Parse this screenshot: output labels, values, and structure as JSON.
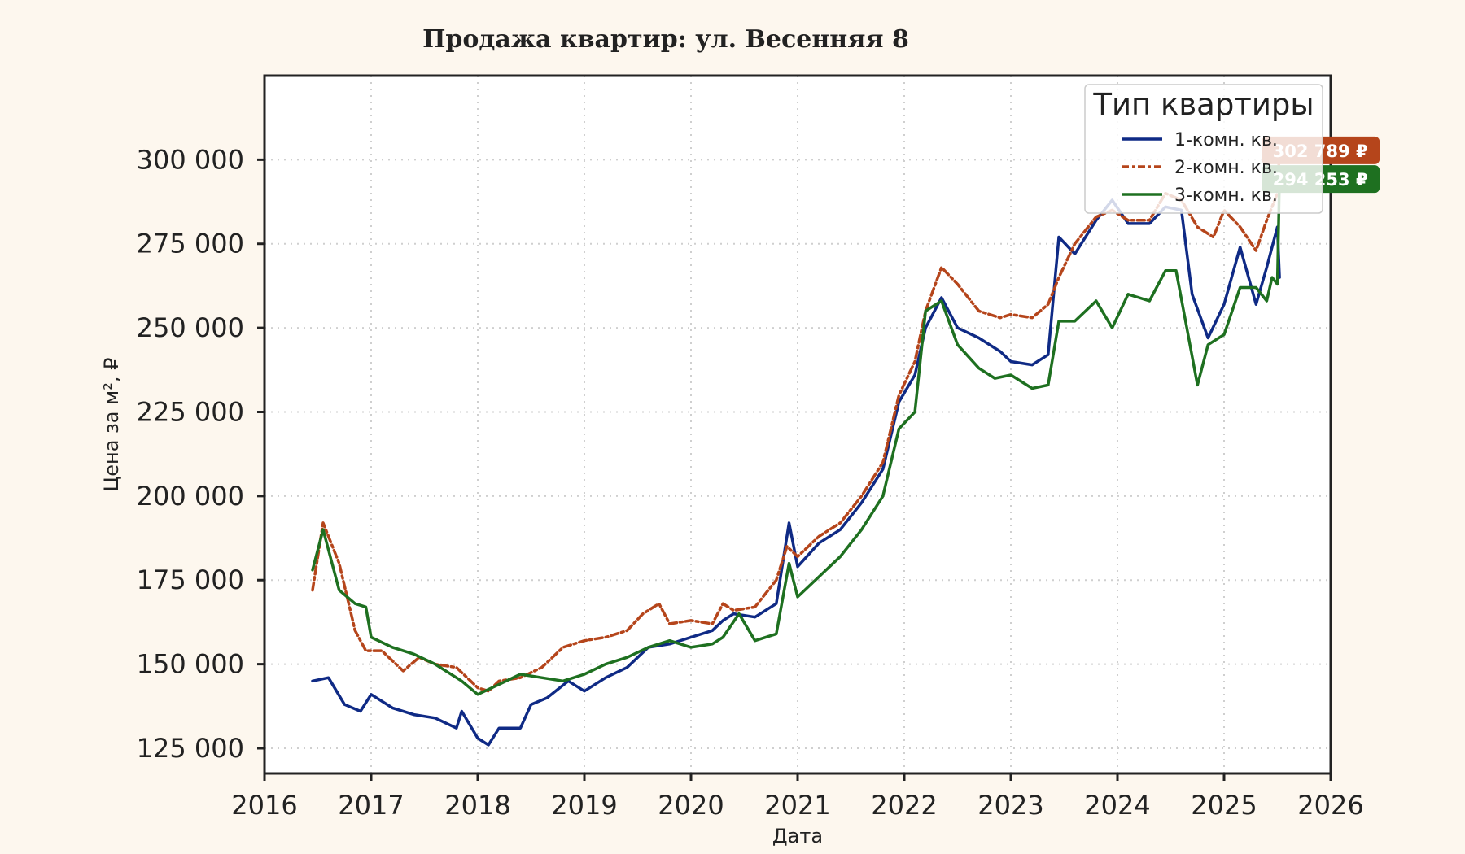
{
  "chart_data": {
    "type": "line",
    "title": "Продажа квартир: ул. Весенняя 8",
    "xlabel": "Дата",
    "ylabel": "Цена за м², ₽",
    "xlim": [
      2016.0,
      2026.0
    ],
    "ylim": [
      117500,
      325000
    ],
    "x_ticks": [
      2016,
      2017,
      2018,
      2019,
      2020,
      2021,
      2022,
      2023,
      2024,
      2025,
      2026
    ],
    "x_tick_labels": [
      "2016",
      "2017",
      "2018",
      "2019",
      "2020",
      "2021",
      "2022",
      "2023",
      "2024",
      "2025",
      "2026"
    ],
    "y_ticks": [
      125000,
      150000,
      175000,
      200000,
      225000,
      250000,
      275000,
      300000
    ],
    "y_tick_labels": [
      "125 000",
      "150 000",
      "175 000",
      "200 000",
      "225 000",
      "250 000",
      "275 000",
      "300 000"
    ],
    "grid": true,
    "legend": {
      "title": "Тип квартиры",
      "position": "top-right"
    },
    "series": [
      {
        "name": "1-комн. кв.",
        "color": "#0f2a85",
        "dash": "solid",
        "x": [
          2016.45,
          2016.6,
          2016.75,
          2016.9,
          2017.0,
          2017.2,
          2017.4,
          2017.6,
          2017.8,
          2017.85,
          2018.0,
          2018.1,
          2018.2,
          2018.4,
          2018.5,
          2018.65,
          2018.85,
          2019.0,
          2019.2,
          2019.4,
          2019.6,
          2019.8,
          2020.0,
          2020.2,
          2020.3,
          2020.4,
          2020.6,
          2020.8,
          2020.92,
          2021.0,
          2021.2,
          2021.4,
          2021.6,
          2021.8,
          2021.95,
          2022.1,
          2022.2,
          2022.35,
          2022.5,
          2022.7,
          2022.9,
          2023.0,
          2023.2,
          2023.35,
          2023.45,
          2023.6,
          2023.8,
          2023.95,
          2024.1,
          2024.3,
          2024.45,
          2024.6,
          2024.7,
          2024.85,
          2025.0,
          2025.15,
          2025.3,
          2025.4,
          2025.5,
          2025.52
        ],
        "y": [
          145000,
          146000,
          138000,
          136000,
          141000,
          137000,
          135000,
          134000,
          131000,
          136000,
          128000,
          126000,
          131000,
          131000,
          138000,
          140000,
          145000,
          142000,
          146000,
          149000,
          155000,
          156000,
          158000,
          160000,
          163000,
          165000,
          164000,
          168000,
          192000,
          179000,
          186000,
          190000,
          198000,
          208000,
          228000,
          236000,
          250000,
          259000,
          250000,
          247000,
          243000,
          240000,
          239000,
          242000,
          277000,
          272000,
          282000,
          288000,
          281000,
          281000,
          286000,
          285000,
          260000,
          247000,
          257000,
          274000,
          257000,
          268000,
          280000,
          265000
        ]
      },
      {
        "name": "2-комн. кв.",
        "color": "#b5451b",
        "dash": "dashdot",
        "x": [
          2016.45,
          2016.55,
          2016.7,
          2016.85,
          2016.95,
          2017.1,
          2017.3,
          2017.45,
          2017.6,
          2017.8,
          2018.0,
          2018.1,
          2018.2,
          2018.4,
          2018.6,
          2018.8,
          2019.0,
          2019.2,
          2019.4,
          2019.55,
          2019.7,
          2019.8,
          2020.0,
          2020.2,
          2020.3,
          2020.4,
          2020.6,
          2020.8,
          2020.9,
          2021.0,
          2021.2,
          2021.4,
          2021.6,
          2021.8,
          2021.95,
          2022.1,
          2022.2,
          2022.35,
          2022.5,
          2022.7,
          2022.9,
          2023.0,
          2023.2,
          2023.35,
          2023.45,
          2023.6,
          2023.8,
          2023.95,
          2024.1,
          2024.3,
          2024.45,
          2024.6,
          2024.75,
          2024.9,
          2025.0,
          2025.15,
          2025.3,
          2025.4,
          2025.5,
          2025.52
        ],
        "y": [
          172000,
          192000,
          180000,
          160000,
          154000,
          154000,
          148000,
          152000,
          150000,
          149000,
          143000,
          142000,
          145000,
          146000,
          149000,
          155000,
          157000,
          158000,
          160000,
          165000,
          168000,
          162000,
          163000,
          162000,
          168000,
          166000,
          167000,
          175000,
          185000,
          182000,
          188000,
          192000,
          200000,
          210000,
          230000,
          240000,
          255000,
          268000,
          263000,
          255000,
          253000,
          254000,
          253000,
          257000,
          265000,
          275000,
          283000,
          285000,
          282000,
          282000,
          290000,
          288000,
          280000,
          277000,
          285000,
          280000,
          273000,
          282000,
          290000,
          302789
        ]
      },
      {
        "name": "3-комн. кв.",
        "color": "#1e7020",
        "dash": "solid",
        "x": [
          2016.45,
          2016.55,
          2016.7,
          2016.85,
          2016.95,
          2017.0,
          2017.2,
          2017.4,
          2017.6,
          2017.85,
          2018.0,
          2018.2,
          2018.4,
          2018.6,
          2018.8,
          2019.0,
          2019.2,
          2019.4,
          2019.6,
          2019.8,
          2020.0,
          2020.2,
          2020.3,
          2020.45,
          2020.6,
          2020.8,
          2020.92,
          2021.0,
          2021.2,
          2021.4,
          2021.6,
          2021.8,
          2021.95,
          2022.1,
          2022.2,
          2022.35,
          2022.5,
          2022.7,
          2022.85,
          2023.0,
          2023.2,
          2023.35,
          2023.45,
          2023.6,
          2023.8,
          2023.95,
          2024.1,
          2024.3,
          2024.45,
          2024.55,
          2024.65,
          2024.75,
          2024.85,
          2025.0,
          2025.15,
          2025.3,
          2025.4,
          2025.45,
          2025.5,
          2025.52
        ],
        "y": [
          178000,
          190000,
          172000,
          168000,
          167000,
          158000,
          155000,
          153000,
          150000,
          145000,
          141000,
          144000,
          147000,
          146000,
          145000,
          147000,
          150000,
          152000,
          155000,
          157000,
          155000,
          156000,
          158000,
          165000,
          157000,
          159000,
          180000,
          170000,
          176000,
          182000,
          190000,
          200000,
          220000,
          225000,
          255000,
          258000,
          245000,
          238000,
          235000,
          236000,
          232000,
          233000,
          252000,
          252000,
          258000,
          250000,
          260000,
          258000,
          267000,
          267000,
          250000,
          233000,
          245000,
          248000,
          262000,
          262000,
          258000,
          265000,
          263000,
          294253
        ]
      }
    ],
    "end_labels": [
      {
        "series": "2-комн. кв.",
        "text": "302 789 ₽",
        "value": 302789,
        "color": "#b5451b"
      },
      {
        "series": "3-комн. кв.",
        "text": "294 253 ₽",
        "value": 294253,
        "color": "#1e7020"
      }
    ]
  }
}
